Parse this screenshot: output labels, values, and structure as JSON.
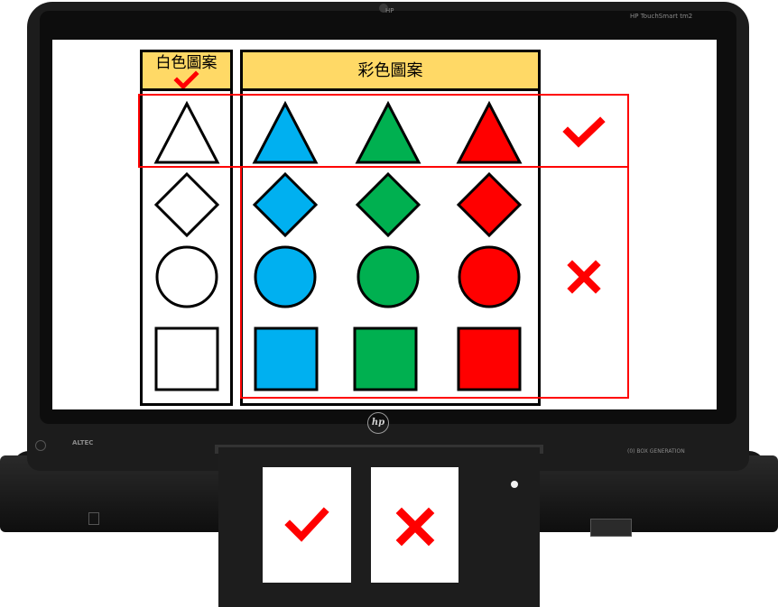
{
  "screen": {
    "white_header": "白色圖案",
    "color_header": "彩色圖案"
  },
  "shapes": {
    "rows": [
      "triangle",
      "diamond",
      "circle",
      "square"
    ],
    "fills": [
      "#ffffff",
      "#00b0f0",
      "#00b050",
      "#ff0000"
    ]
  },
  "marks": {
    "header_check": "check-icon",
    "row_check": "check-icon",
    "row_cross": "cross-icon"
  },
  "colors": {
    "header_fill": "#ffd966",
    "outline_red": "#ff0000",
    "check_red": "#ff0000",
    "blue": "#00b0f0",
    "green": "#00b050",
    "red": "#ff0000"
  },
  "device": {
    "logo": "hp",
    "top_label": "HP TouchSmart tm2",
    "bottom_left_label": "ALTEC",
    "bottom_right_label": "(0) BOX GENERATION"
  },
  "response_cards": [
    {
      "icon": "check-icon"
    },
    {
      "icon": "cross-icon"
    }
  ]
}
